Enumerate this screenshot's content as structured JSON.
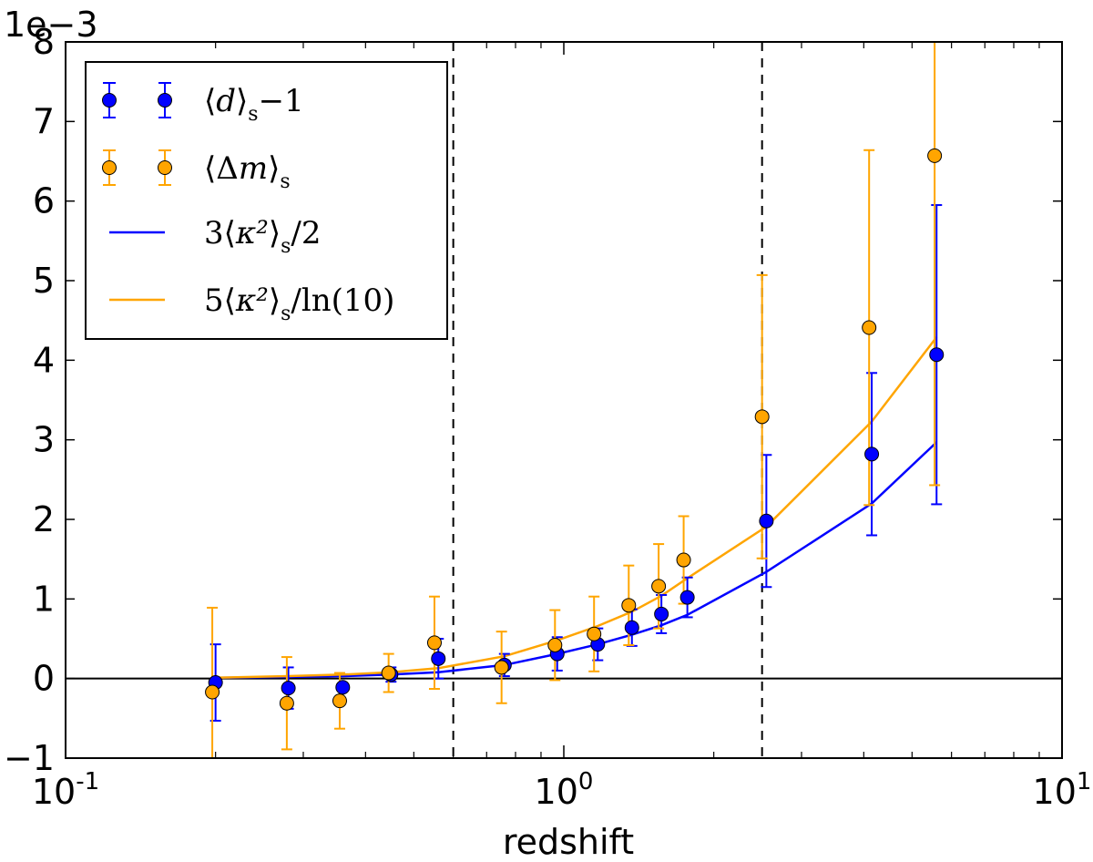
{
  "chart_data": {
    "type": "scatter",
    "title": "",
    "xlabel": "redshift",
    "ylabel": "",
    "xscale": "log",
    "xlim": [
      0.1,
      10
    ],
    "ylim": [
      -0.001,
      0.008
    ],
    "y_multiplier_label": "1e−3",
    "x_tick_labels": [
      {
        "base": "10",
        "exp": "-1",
        "value": 0.1
      },
      {
        "base": "10",
        "exp": "0",
        "value": 1
      },
      {
        "base": "10",
        "exp": "1",
        "value": 10
      }
    ],
    "y_ticks": [
      -1,
      0,
      1,
      2,
      3,
      4,
      5,
      6,
      7,
      8
    ],
    "y_tick_labels": [
      "−1",
      "0",
      "1",
      "2",
      "3",
      "4",
      "5",
      "6",
      "7",
      "8"
    ],
    "vertical_dashed_lines": [
      0.6,
      2.5
    ],
    "horizontal_zero_line": 0,
    "legend_position": "top-left",
    "colors": {
      "blue": "#0000ff",
      "orange": "#ffa500",
      "black": "#000000"
    },
    "legend": [
      {
        "kind": "errorbar",
        "color": "blue",
        "pre": "⟨",
        "var": "d",
        "post": "⟩",
        "sub": "s",
        "tail": "−1"
      },
      {
        "kind": "errorbar",
        "color": "orange",
        "pre": "⟨Δ",
        "var": "m",
        "post": "⟩",
        "sub": "s",
        "tail": ""
      },
      {
        "kind": "line",
        "color": "blue",
        "pre": "3⟨",
        "var": "κ²",
        "post": "⟩",
        "sub": "s",
        "tail": "/2"
      },
      {
        "kind": "line",
        "color": "orange",
        "pre": "5⟨",
        "var": "κ²",
        "post": "⟩",
        "sub": "s",
        "tail": "/ln(10)"
      }
    ],
    "series": [
      {
        "name": "⟨d⟩s−1",
        "kind": "errorbar",
        "color": "blue",
        "x": [
          0.2,
          0.28,
          0.36,
          0.45,
          0.56,
          0.76,
          0.97,
          1.17,
          1.37,
          1.57,
          1.77,
          2.55,
          4.15,
          5.6
        ],
        "y": [
          -5e-05,
          -0.00012,
          -0.00011,
          5e-05,
          0.00025,
          0.00017,
          0.00031,
          0.00043,
          0.00064,
          0.00081,
          0.00102,
          0.00198,
          0.00282,
          0.00407
        ],
        "yerr": [
          0.00048,
          0.00026,
          4e-05,
          9e-05,
          0.00025,
          0.00014,
          0.00021,
          0.0002,
          0.00023,
          0.00024,
          0.00025,
          0.00083,
          0.00102,
          0.00188
        ]
      },
      {
        "name": "⟨Δm⟩s",
        "kind": "errorbar",
        "color": "orange",
        "x": [
          0.197,
          0.278,
          0.355,
          0.445,
          0.55,
          0.75,
          0.96,
          1.15,
          1.35,
          1.55,
          1.74,
          2.5,
          4.1,
          5.55
        ],
        "y": [
          -0.00017,
          -0.00031,
          -0.00028,
          7e-05,
          0.00045,
          0.00014,
          0.00042,
          0.00056,
          0.00092,
          0.00116,
          0.00149,
          0.00329,
          0.00441,
          0.00657
        ],
        "yerr": [
          0.00106,
          0.00058,
          0.00035,
          0.00024,
          0.00058,
          0.00045,
          0.00044,
          0.00047,
          0.0005,
          0.00053,
          0.00055,
          0.00178,
          0.00223,
          0.00414
        ]
      },
      {
        "name": "3⟨κ²⟩s/2",
        "kind": "line",
        "color": "blue",
        "x": [
          0.2,
          0.28,
          0.36,
          0.45,
          0.56,
          0.76,
          0.97,
          1.17,
          1.37,
          1.57,
          1.77,
          2.55,
          4.15,
          5.6
        ],
        "y": [
          1e-05,
          2e-05,
          3e-05,
          5e-05,
          8e-05,
          0.00017,
          0.00031,
          0.00043,
          0.00055,
          0.00067,
          0.0008,
          0.00134,
          0.0022,
          0.00297
        ]
      },
      {
        "name": "5⟨κ²⟩s/ln(10)",
        "kind": "line",
        "color": "orange",
        "x": [
          0.2,
          0.28,
          0.36,
          0.45,
          0.56,
          0.76,
          0.97,
          1.17,
          1.37,
          1.57,
          1.77,
          2.55,
          4.15,
          5.6
        ],
        "y": [
          1e-05,
          3e-05,
          5e-05,
          8e-05,
          0.00013,
          0.00028,
          0.00048,
          0.00066,
          0.00084,
          0.00104,
          0.00126,
          0.00191,
          0.00323,
          0.00429
        ]
      }
    ]
  }
}
